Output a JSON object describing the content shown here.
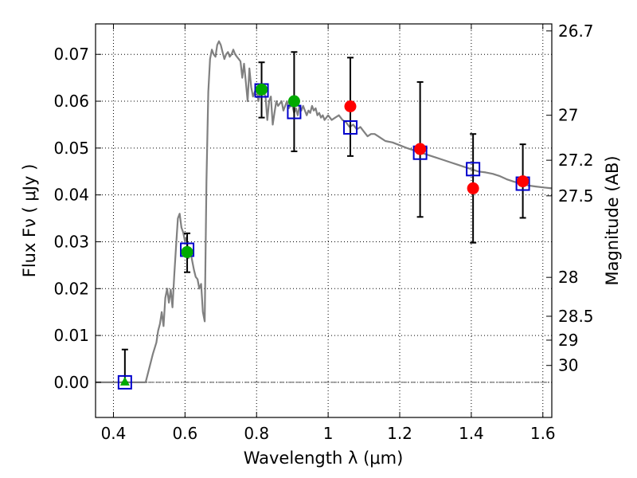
{
  "chart_data": {
    "type": "scatter",
    "title": "",
    "xlabel": "Wavelength  λ (μm)",
    "ylabel": "Flux  Fν  ( μJy )",
    "y2label": "Magnitude (AB)",
    "xlim": [
      0.35,
      1.625
    ],
    "ylim": [
      -0.0075,
      0.0765
    ],
    "grid": true,
    "legend": "none",
    "x_ticks": [
      {
        "value": 0.4,
        "label": "0.4"
      },
      {
        "value": 0.6,
        "label": "0.6"
      },
      {
        "value": 0.8,
        "label": "0.8"
      },
      {
        "value": 1.0,
        "label": "1"
      },
      {
        "value": 1.2,
        "label": "1.2"
      },
      {
        "value": 1.4,
        "label": "1.4"
      },
      {
        "value": 1.6,
        "label": "1.6"
      }
    ],
    "y_ticks": [
      {
        "value": 0.0,
        "label": "0.00"
      },
      {
        "value": 0.01,
        "label": "0.01"
      },
      {
        "value": 0.02,
        "label": "0.02"
      },
      {
        "value": 0.03,
        "label": "0.03"
      },
      {
        "value": 0.04,
        "label": "0.04"
      },
      {
        "value": 0.05,
        "label": "0.05"
      },
      {
        "value": 0.06,
        "label": "0.06"
      },
      {
        "value": 0.07,
        "label": "0.07"
      }
    ],
    "y2_ticks": [
      {
        "label": "26.7",
        "flux": 0.075
      },
      {
        "label": "27",
        "flux": 0.057
      },
      {
        "label": "27.2",
        "flux": 0.0474
      },
      {
        "label": "27.5",
        "flux": 0.0398
      },
      {
        "label": "28",
        "flux": 0.0224
      },
      {
        "label": "28.5",
        "flux": 0.0141
      },
      {
        "label": "29",
        "flux": 0.009
      },
      {
        "label": "30",
        "flux": 0.0036
      }
    ],
    "series": [
      {
        "kind": "line",
        "color": "#808080",
        "x": [
          0.35,
          0.49,
          0.5,
          0.51,
          0.52,
          0.525,
          0.53,
          0.535,
          0.54,
          0.545,
          0.55,
          0.555,
          0.56,
          0.565,
          0.57,
          0.575,
          0.58,
          0.585,
          0.59,
          0.595,
          0.6,
          0.605,
          0.61,
          0.615,
          0.62,
          0.625,
          0.63,
          0.635,
          0.64,
          0.645,
          0.65,
          0.655,
          0.66,
          0.665,
          0.67,
          0.675,
          0.68,
          0.685,
          0.69,
          0.695,
          0.7,
          0.705,
          0.71,
          0.715,
          0.72,
          0.725,
          0.73,
          0.735,
          0.74,
          0.745,
          0.75,
          0.755,
          0.76,
          0.765,
          0.77,
          0.775,
          0.78,
          0.785,
          0.79,
          0.795,
          0.8,
          0.805,
          0.81,
          0.815,
          0.82,
          0.825,
          0.83,
          0.835,
          0.84,
          0.845,
          0.85,
          0.855,
          0.86,
          0.865,
          0.87,
          0.875,
          0.88,
          0.885,
          0.89,
          0.895,
          0.9,
          0.905,
          0.91,
          0.915,
          0.92,
          0.925,
          0.93,
          0.935,
          0.94,
          0.945,
          0.95,
          0.955,
          0.96,
          0.965,
          0.97,
          0.975,
          0.98,
          0.985,
          0.99,
          1.0,
          1.01,
          1.02,
          1.03,
          1.04,
          1.05,
          1.06,
          1.07,
          1.08,
          1.09,
          1.1,
          1.11,
          1.12,
          1.13,
          1.14,
          1.15,
          1.16,
          1.18,
          1.2,
          1.22,
          1.24,
          1.26,
          1.28,
          1.3,
          1.32,
          1.34,
          1.36,
          1.38,
          1.4,
          1.42,
          1.44,
          1.46,
          1.48,
          1.5,
          1.52,
          1.54,
          1.56,
          1.58,
          1.6,
          1.625
        ],
        "y": [
          0.0,
          0.0,
          0.003,
          0.006,
          0.0085,
          0.011,
          0.0125,
          0.015,
          0.012,
          0.018,
          0.02,
          0.017,
          0.0198,
          0.016,
          0.023,
          0.029,
          0.035,
          0.036,
          0.033,
          0.032,
          0.03,
          0.031,
          0.0265,
          0.028,
          0.026,
          0.024,
          0.0225,
          0.022,
          0.02,
          0.021,
          0.015,
          0.013,
          0.043,
          0.062,
          0.069,
          0.071,
          0.07,
          0.0695,
          0.072,
          0.0728,
          0.072,
          0.0705,
          0.069,
          0.07,
          0.0705,
          0.0695,
          0.07,
          0.071,
          0.07,
          0.0695,
          0.069,
          0.0685,
          0.065,
          0.068,
          0.064,
          0.06,
          0.067,
          0.063,
          0.061,
          0.062,
          0.063,
          0.06,
          0.062,
          0.0635,
          0.062,
          0.061,
          0.056,
          0.06,
          0.061,
          0.055,
          0.0575,
          0.06,
          0.059,
          0.0595,
          0.06,
          0.058,
          0.059,
          0.06,
          0.0585,
          0.059,
          0.059,
          0.0575,
          0.0585,
          0.057,
          0.059,
          0.058,
          0.059,
          0.058,
          0.057,
          0.058,
          0.0575,
          0.059,
          0.058,
          0.0585,
          0.057,
          0.0575,
          0.0565,
          0.057,
          0.056,
          0.057,
          0.056,
          0.0565,
          0.057,
          0.056,
          0.0555,
          0.0545,
          0.055,
          0.054,
          0.0545,
          0.0535,
          0.0525,
          0.053,
          0.053,
          0.0525,
          0.052,
          0.0515,
          0.0512,
          0.0506,
          0.05,
          0.0495,
          0.049,
          0.0485,
          0.048,
          0.0475,
          0.047,
          0.0465,
          0.046,
          0.0455,
          0.045,
          0.0448,
          0.0445,
          0.044,
          0.0433,
          0.0428,
          0.0425,
          0.042,
          0.0418,
          0.0416,
          0.0414
        ]
      },
      {
        "kind": "error_bars",
        "color": "#000000",
        "points": [
          {
            "x": 0.432,
            "y": 0.0,
            "lo": 0.0,
            "hi": 0.007
          },
          {
            "x": 0.606,
            "y": 0.0278,
            "lo": 0.0235,
            "hi": 0.0318
          },
          {
            "x": 0.814,
            "y": 0.0625,
            "lo": 0.0565,
            "hi": 0.0683
          },
          {
            "x": 0.905,
            "y": 0.06,
            "lo": 0.0493,
            "hi": 0.0705
          },
          {
            "x": 1.062,
            "y": 0.0589,
            "lo": 0.0483,
            "hi": 0.0693
          },
          {
            "x": 1.257,
            "y": 0.0498,
            "lo": 0.0353,
            "hi": 0.0641
          },
          {
            "x": 1.405,
            "y": 0.0414,
            "lo": 0.0298,
            "hi": 0.053
          },
          {
            "x": 1.544,
            "y": 0.0429,
            "lo": 0.0351,
            "hi": 0.0508
          }
        ]
      },
      {
        "kind": "open_squares",
        "color": "#0000cc",
        "x": [
          0.432,
          0.606,
          0.814,
          0.905,
          1.062,
          1.257,
          1.405,
          1.544
        ],
        "y": [
          0.0,
          0.0283,
          0.0623,
          0.0577,
          0.0544,
          0.049,
          0.0455,
          0.0424
        ]
      },
      {
        "kind": "filled_circles",
        "color": "#00aa00",
        "x": [
          0.606,
          0.814,
          0.905
        ],
        "y": [
          0.0278,
          0.0625,
          0.06
        ]
      },
      {
        "kind": "filled_circles",
        "color": "#ff0000",
        "x": [
          1.062,
          1.257,
          1.405,
          1.544
        ],
        "y": [
          0.0589,
          0.0498,
          0.0414,
          0.0429
        ]
      },
      {
        "kind": "triangle",
        "color": "#00aa00",
        "x": [
          0.432
        ],
        "y": [
          0.0
        ]
      }
    ]
  }
}
